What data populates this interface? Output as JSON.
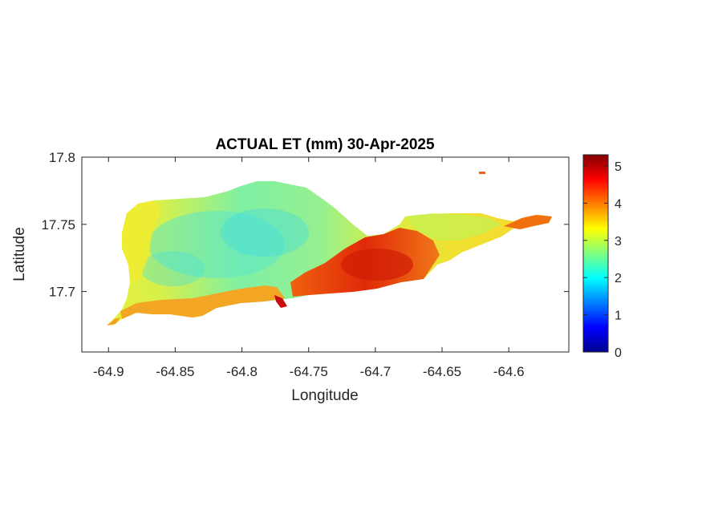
{
  "chart_data": {
    "type": "heatmap",
    "title": "ACTUAL ET (mm) 30-Apr-2025",
    "xlabel": "Longitude",
    "ylabel": "Latitude",
    "xlim": [
      -64.92,
      -64.555
    ],
    "ylim": [
      17.655,
      17.8
    ],
    "xticks": [
      -64.9,
      -64.85,
      -64.8,
      -64.75,
      -64.7,
      -64.65,
      -64.6
    ],
    "xtick_labels": [
      "-64.9",
      "-64.85",
      "-64.8",
      "-64.75",
      "-64.7",
      "-64.65",
      "-64.6"
    ],
    "yticks": [
      17.7,
      17.75,
      17.8
    ],
    "ytick_labels": [
      "17.7",
      "17.75",
      "17.8"
    ],
    "colorbar": {
      "colormap": "jet",
      "range": [
        0,
        5.3
      ],
      "ticks": [
        0,
        1,
        2,
        3,
        4,
        5
      ],
      "tick_labels": [
        "0",
        "1",
        "2",
        "3",
        "4",
        "5"
      ]
    },
    "regions": [
      {
        "area": "west and central island",
        "approx_value": 2.5
      },
      {
        "area": "north-east coast",
        "approx_value": 3.0
      },
      {
        "area": "south-central coast",
        "approx_value": 4.7
      },
      {
        "area": "east end tip",
        "approx_value": 4.8
      }
    ]
  }
}
